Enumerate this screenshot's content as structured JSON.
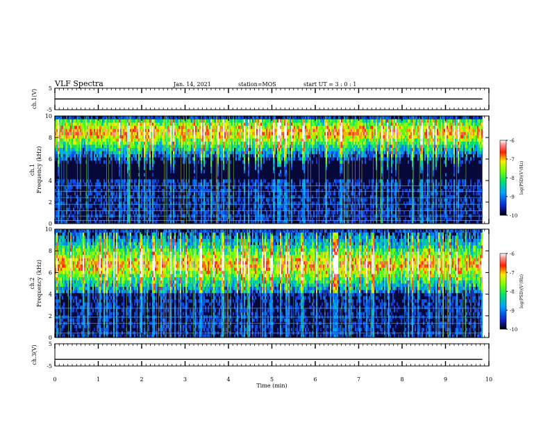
{
  "header": {
    "title": "VLF Spectra",
    "date": "Jan. 14, 2021",
    "station": "station=MOS",
    "start_ut": "start  UT =  3 : 0 : 1"
  },
  "chart_data": [
    {
      "type": "line",
      "panel": "ch1-waveform",
      "ylabel": "ch.1(V)",
      "ylim": [
        -5,
        5
      ],
      "yticks": [
        "5",
        "-5"
      ],
      "series": [
        {
          "x": [
            0,
            9.85
          ],
          "values": [
            0,
            0
          ]
        }
      ]
    },
    {
      "type": "heatmap",
      "panel": "ch1-spectrogram",
      "ylabel": "ch.1\nFrequency (kHz)",
      "ylim": [
        0,
        10
      ],
      "yticks": [
        "0",
        "2",
        "4",
        "6",
        "8",
        "10"
      ],
      "x_range_min": [
        0,
        9.85
      ],
      "color_scale": "log(PSD)(V²/Hz)",
      "colorbar_ticks": [
        "-6",
        "-7",
        "-8",
        "-9",
        "-10"
      ],
      "colorbar_range": [
        -10,
        -6
      ],
      "intense_band_khz": [
        7.5,
        9.5
      ],
      "hum_lines_khz": [
        0.3,
        0.7,
        1.2,
        1.8,
        2.4,
        3.0,
        3.5
      ]
    },
    {
      "type": "heatmap",
      "panel": "ch2-spectrogram",
      "ylabel": "ch.2\nFrequency (kHz)",
      "ylim": [
        0,
        10
      ],
      "yticks": [
        "0",
        "2",
        "4",
        "6",
        "8",
        "10"
      ],
      "x_range_min": [
        0,
        9.85
      ],
      "color_scale": "log(PSD)(V²/Hz)",
      "colorbar_ticks": [
        "-6",
        "-7",
        "-8",
        "-9",
        "-10"
      ],
      "colorbar_range": [
        -10,
        -6
      ],
      "intense_band_khz": [
        5.5,
        8
      ],
      "hum_lines_khz": [
        0.4,
        1.3,
        1.9,
        2.7
      ]
    },
    {
      "type": "line",
      "panel": "ch3-waveform",
      "ylabel": "ch.3(V)",
      "ylim": [
        -5,
        5
      ],
      "yticks": [
        "5",
        "-5"
      ],
      "xlabel": "Time  (min)",
      "xticks": [
        "0",
        "1",
        "2",
        "3",
        "4",
        "5",
        "6",
        "7",
        "8",
        "9",
        "10"
      ],
      "xlim": [
        0,
        10
      ],
      "series": [
        {
          "x": [
            0,
            9.85
          ],
          "values": [
            -2,
            -2
          ]
        }
      ]
    }
  ]
}
